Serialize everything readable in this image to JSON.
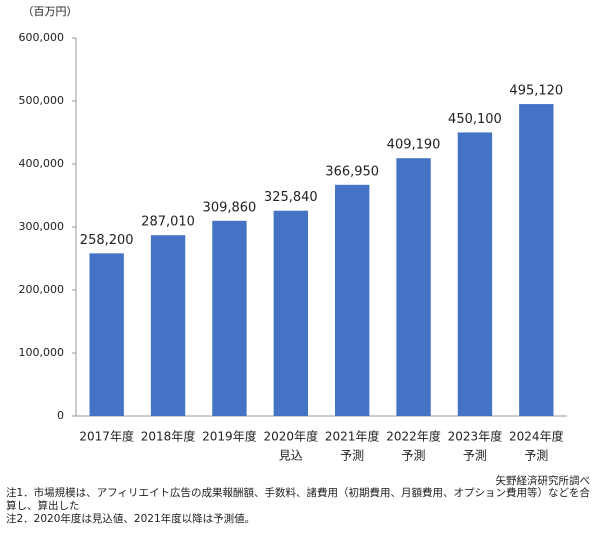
{
  "chart_data": {
    "type": "bar",
    "y_unit_label": "（百万円）",
    "categories": [
      "2017年度",
      "2018年度",
      "2019年度",
      "2020年度",
      "2021年度",
      "2022年度",
      "2023年度",
      "2024年度"
    ],
    "category_sublabels": [
      null,
      null,
      null,
      "見込",
      "予測",
      "予測",
      "予測",
      "予測"
    ],
    "values": [
      258200,
      287010,
      309860,
      325840,
      366950,
      409190,
      450100,
      495120
    ],
    "value_labels": [
      "258,200",
      "287,010",
      "309,860",
      "325,840",
      "366,950",
      "409,190",
      "450,100",
      "495,120"
    ],
    "color": "#4472c4",
    "ylim": [
      0,
      600000
    ],
    "yticks": [
      0,
      {
        "value": 100000,
        "label": "100,000"
      },
      {
        "value": 200000,
        "label": "200,000"
      },
      {
        "value": 300000,
        "label": "300,000"
      },
      {
        "value": 400000,
        "label": "400,000"
      },
      {
        "value": 500000,
        "label": "500,000"
      },
      {
        "value": 600000,
        "label": "600,000"
      }
    ],
    "grid": false,
    "source": "矢野経済研究所調べ",
    "notes": [
      "注1．市場規模は、アフィリエイト広告の成果報酬額、手数料、諸費用（初期費用、月額費用、オプション費用等）などを合算し、算出した",
      "注2．2020年度は見込値、2021年度以降は予測値。"
    ]
  }
}
